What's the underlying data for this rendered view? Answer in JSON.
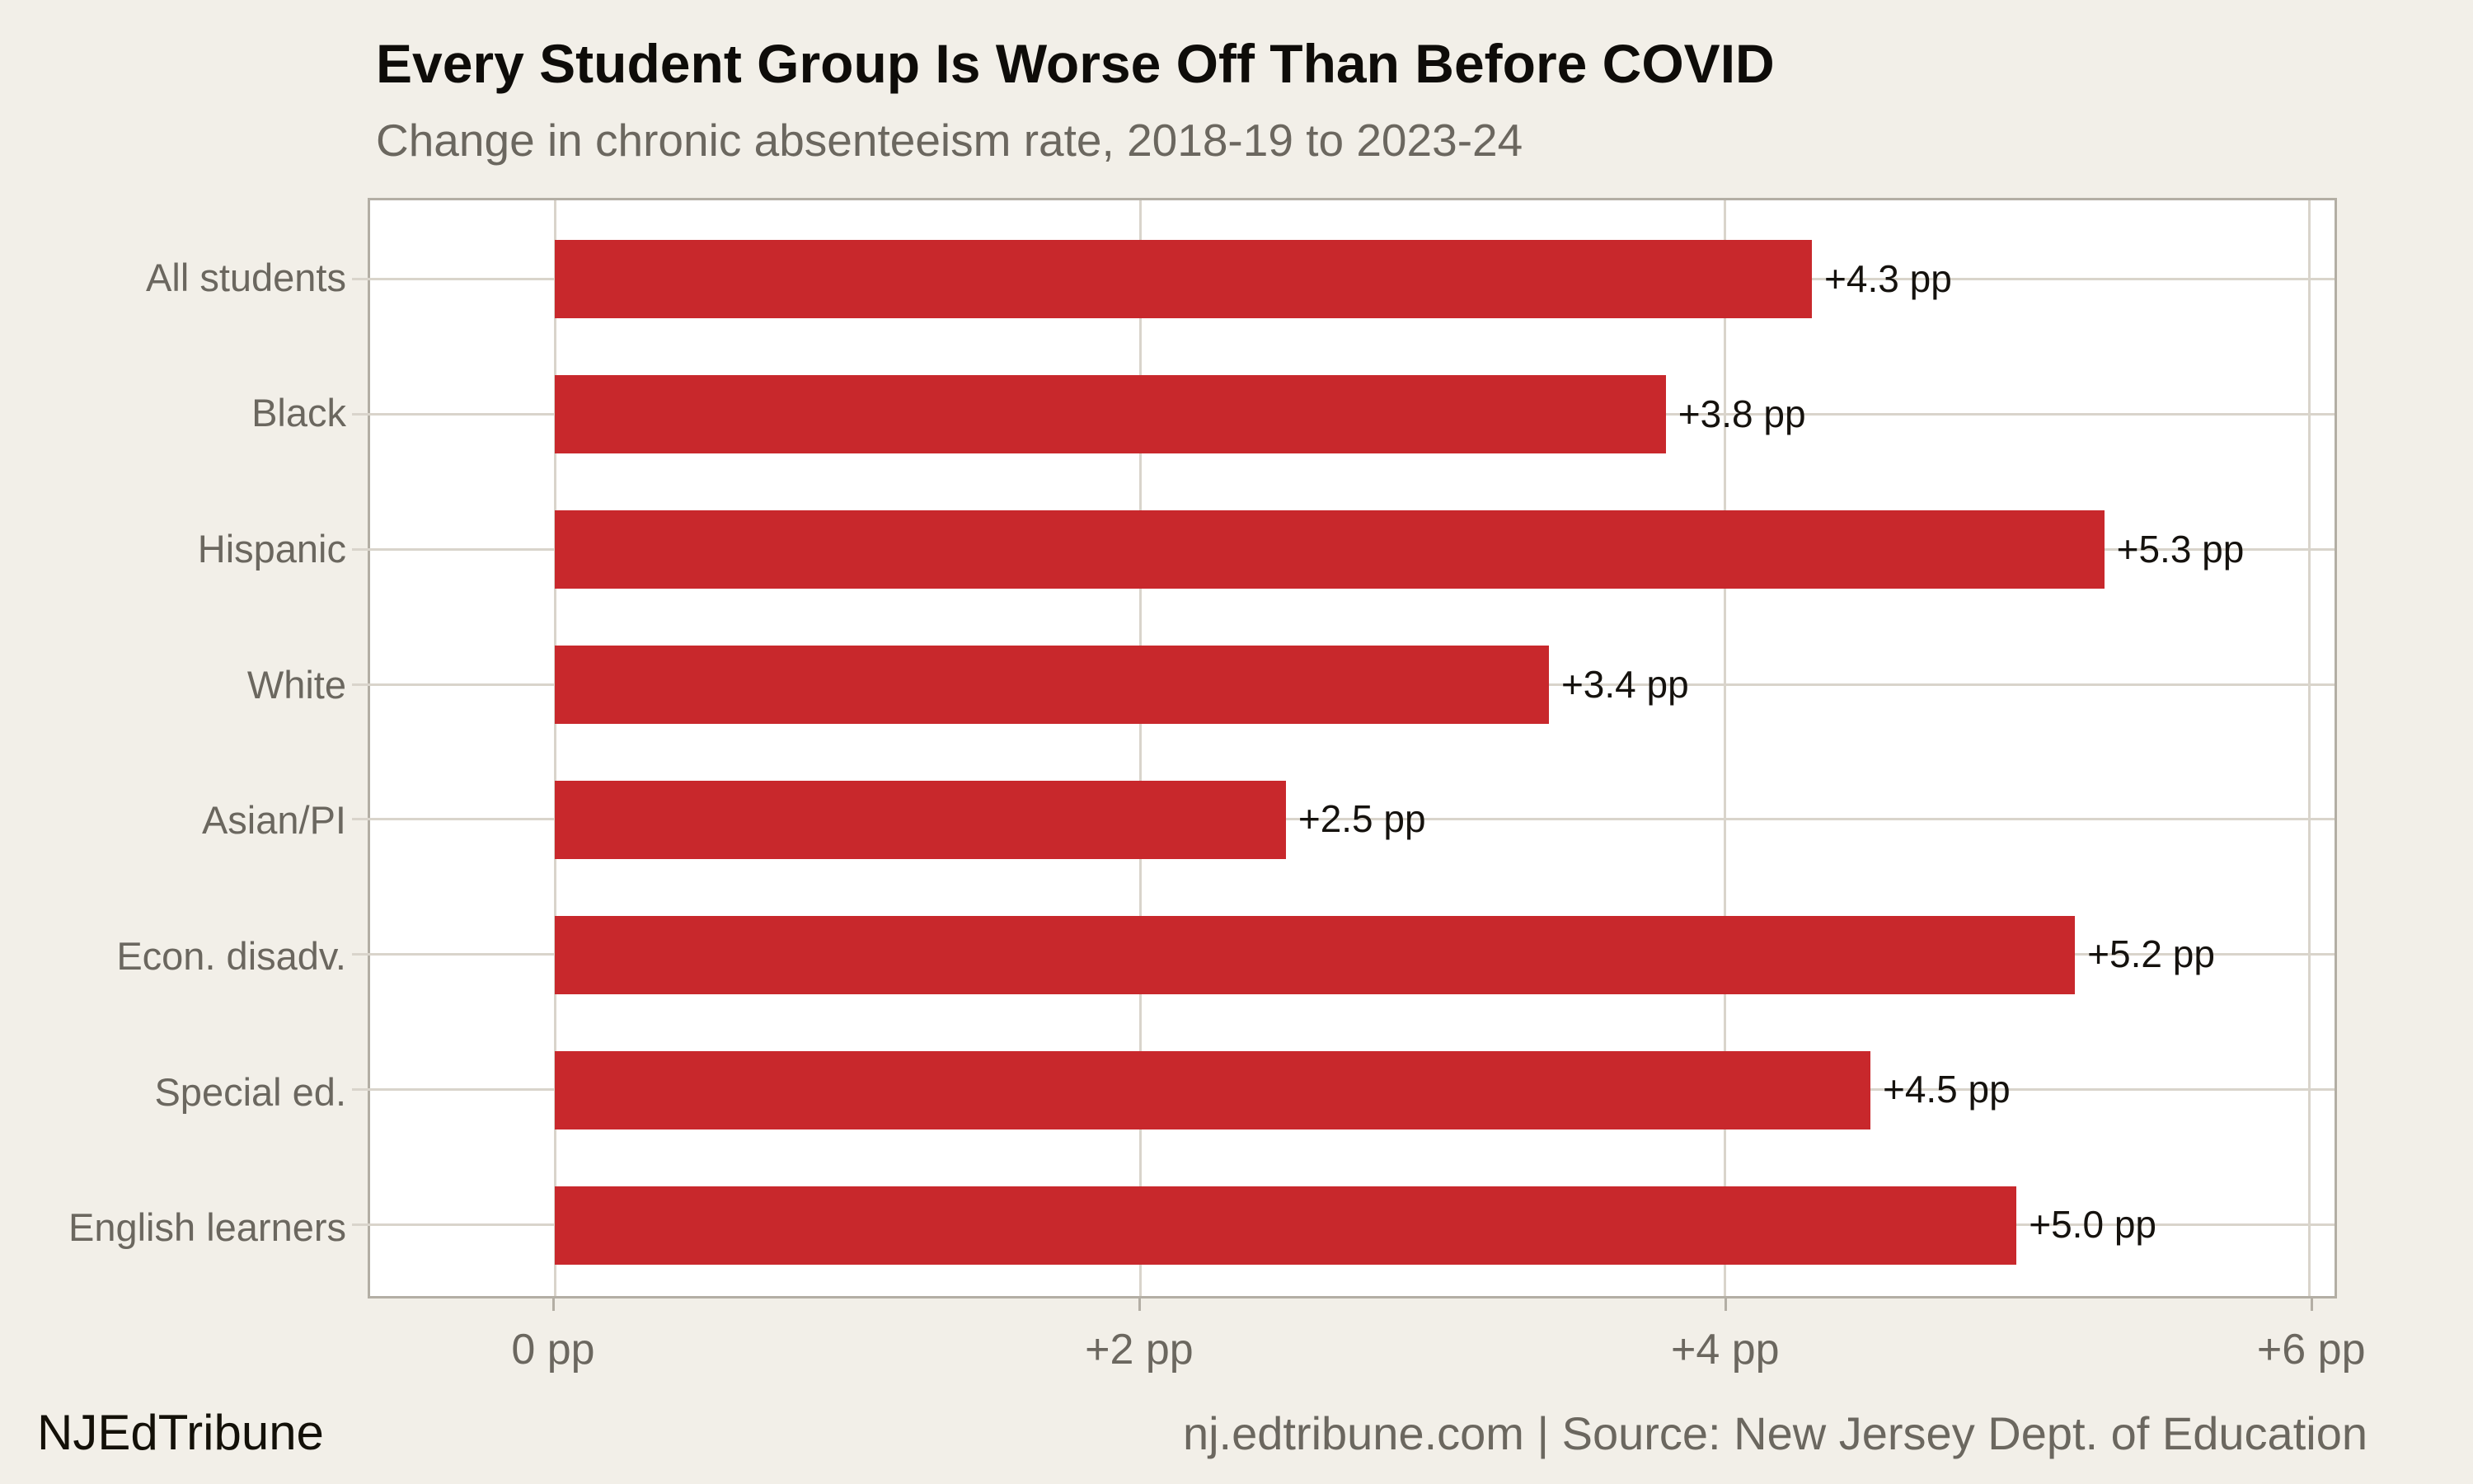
{
  "header": {
    "title": "Every Student Group Is Worse Off Than Before COVID",
    "subtitle": "Change in chronic absenteeism rate, 2018-19 to 2023-24"
  },
  "footer": {
    "brand": "NJEdTribune",
    "source": "nj.edtribune.com | Source: New Jersey Dept. of Education"
  },
  "colors": {
    "background": "#F2EFE8",
    "plot_background": "#FFFFFF",
    "bar": "#C8282C",
    "gridline": "#D9D4CB",
    "axis_border": "#B3AEA4",
    "muted_text": "#6B675F",
    "value_text": "#15120E",
    "title_text": "#0E0C09"
  },
  "chart_data": {
    "type": "bar",
    "orientation": "horizontal",
    "title": "Every Student Group Is Worse Off Than Before COVID",
    "subtitle": "Change in chronic absenteeism rate, 2018-19 to 2023-24",
    "xlabel": "",
    "ylabel": "",
    "unit": "percentage points",
    "categories": [
      "All students",
      "Black",
      "Hispanic",
      "White",
      "Asian/PI",
      "Econ. disadv.",
      "Special ed.",
      "English learners"
    ],
    "values": [
      4.3,
      3.8,
      5.3,
      3.4,
      2.5,
      5.2,
      4.5,
      5.0
    ],
    "value_labels": [
      "+4.3 pp",
      "+3.8 pp",
      "+5.3 pp",
      "+3.4 pp",
      "+2.5 pp",
      "+5.2 pp",
      "+4.5 pp",
      "+5.0 pp"
    ],
    "x_ticks": [
      {
        "value": 0,
        "label": "0 pp"
      },
      {
        "value": 2,
        "label": "+2 pp"
      },
      {
        "value": 4,
        "label": "+4 pp"
      },
      {
        "value": 6,
        "label": "+6 pp"
      }
    ],
    "xlim": [
      -0.633,
      6.088
    ],
    "grid": true,
    "legend": null
  }
}
